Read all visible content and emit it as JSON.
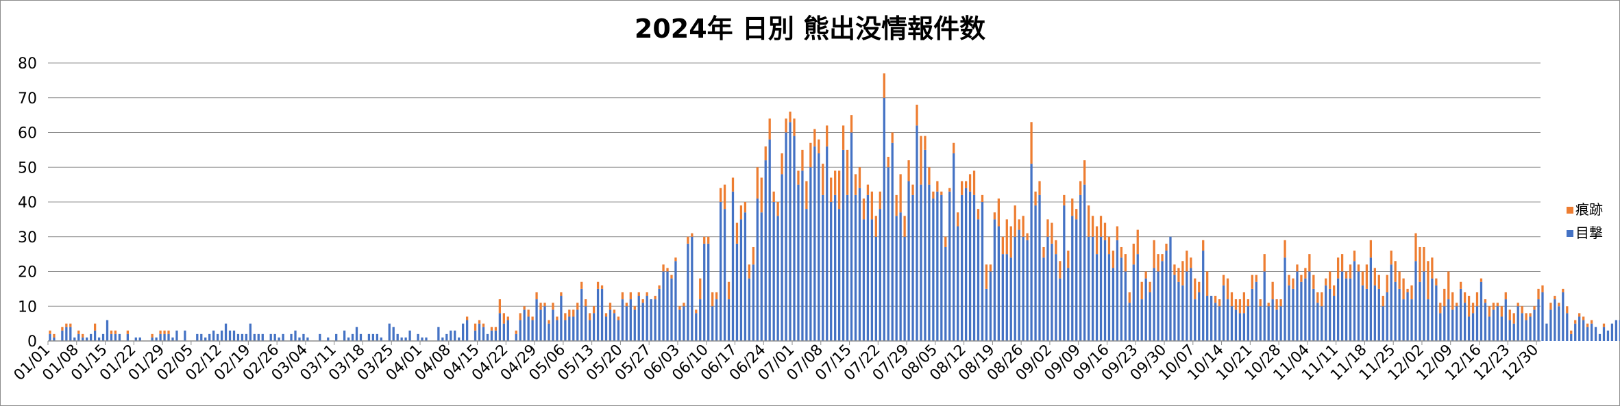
{
  "chart_data": {
    "type": "bar",
    "stacked": true,
    "title": "2024年 日別 熊出没情報件数",
    "xlabel": "",
    "ylabel": "",
    "ylim": [
      0,
      80
    ],
    "yticks": [
      0,
      10,
      20,
      30,
      40,
      50,
      60,
      70,
      80
    ],
    "grid": true,
    "legend_position": "right",
    "date_start": "2024-01-01",
    "date_end": "2024-12-30",
    "x_tick_labels": [
      "01/01",
      "01/08",
      "01/15",
      "01/22",
      "01/29",
      "02/05",
      "02/12",
      "02/19",
      "02/26",
      "03/04",
      "03/11",
      "03/18",
      "03/25",
      "04/01",
      "04/08",
      "04/15",
      "04/22",
      "04/29",
      "05/06",
      "05/13",
      "05/20",
      "05/27",
      "06/03",
      "06/10",
      "06/17",
      "06/24",
      "07/01",
      "07/08",
      "07/15",
      "07/22",
      "07/29",
      "08/05",
      "08/12",
      "08/19",
      "08/26",
      "09/02",
      "09/09",
      "09/16",
      "09/23",
      "09/30",
      "10/07",
      "10/14",
      "10/21",
      "10/28",
      "11/04",
      "11/11",
      "11/18",
      "11/25",
      "12/02",
      "12/09",
      "12/16",
      "12/23",
      "12/30"
    ],
    "series": [
      {
        "name": "目撃",
        "color": "#4472c4",
        "values": [
          2,
          1,
          0,
          3,
          4,
          4,
          1,
          2,
          1,
          1,
          2,
          3,
          1,
          2,
          6,
          2,
          2,
          2,
          0,
          2,
          0,
          1,
          1,
          0,
          0,
          1,
          1,
          2,
          2,
          2,
          1,
          3,
          0,
          3,
          0,
          0,
          2,
          2,
          1,
          2,
          3,
          2,
          3,
          5,
          3,
          3,
          2,
          2,
          2,
          5,
          2,
          2,
          2,
          0,
          2,
          2,
          1,
          2,
          0,
          2,
          3,
          1,
          2,
          1,
          0,
          0,
          2,
          0,
          1,
          0,
          2,
          0,
          3,
          1,
          2,
          4,
          2,
          0,
          2,
          2,
          2,
          1,
          0,
          5,
          4,
          2,
          1,
          1,
          3,
          0,
          2,
          1,
          1,
          0,
          0,
          4,
          1,
          2,
          3,
          3,
          1,
          5,
          6,
          0,
          3,
          5,
          4,
          2,
          3,
          3,
          8,
          5,
          6,
          0,
          2,
          6,
          9,
          7,
          6,
          12,
          9,
          10,
          5,
          9,
          6,
          13,
          6,
          7,
          7,
          9,
          15,
          10,
          6,
          8,
          15,
          15,
          7,
          9,
          8,
          6,
          12,
          10,
          12,
          9,
          13,
          11,
          13,
          12,
          12,
          15,
          20,
          20,
          18,
          23,
          9,
          10,
          28,
          30,
          8,
          12,
          28,
          28,
          10,
          12,
          40,
          38,
          12,
          43,
          28,
          35,
          37,
          18,
          22,
          41,
          37,
          52,
          58,
          40,
          36,
          48,
          60,
          63,
          59,
          45,
          49,
          38,
          50,
          56,
          54,
          42,
          56,
          40,
          42,
          38,
          55,
          42,
          60,
          42,
          44,
          35,
          42,
          35,
          30,
          38,
          70,
          50,
          57,
          36,
          37,
          30,
          46,
          42,
          62,
          45,
          55,
          45,
          41,
          43,
          42,
          27,
          43,
          54,
          33,
          42,
          44,
          43,
          42,
          35,
          40,
          15,
          20,
          35,
          33,
          25,
          25,
          24,
          30,
          32,
          30,
          29,
          51,
          39,
          42,
          24,
          30,
          28,
          25,
          18,
          39,
          21,
          36,
          35,
          42,
          45,
          30,
          30,
          25,
          30,
          29,
          25,
          21,
          29,
          24,
          20,
          11,
          22,
          25,
          12,
          18,
          14,
          21,
          20,
          23,
          26,
          30,
          19,
          17,
          16,
          20,
          21,
          12,
          14,
          26,
          13,
          13,
          11,
          10,
          16,
          12,
          10,
          9,
          8,
          8,
          10,
          15,
          17,
          10,
          20,
          10,
          12,
          9,
          10,
          24,
          16,
          15,
          20,
          17,
          18,
          20,
          15,
          11,
          10,
          16,
          15,
          13,
          18,
          20,
          18,
          18,
          23,
          20,
          16,
          15,
          24,
          16,
          15,
          10,
          14,
          22,
          17,
          15,
          12,
          14,
          12,
          23,
          17,
          20,
          12,
          18,
          16,
          8,
          10,
          12,
          9,
          10,
          15,
          11,
          7,
          8,
          10,
          17,
          11,
          7,
          9,
          10,
          7,
          12,
          6,
          5,
          10,
          8,
          6,
          7,
          9,
          12,
          14,
          5,
          9,
          12,
          10,
          14,
          8,
          2,
          5,
          7,
          6,
          4,
          5,
          4,
          2,
          4,
          3,
          5,
          6,
          6,
          3,
          2,
          2,
          1,
          0,
          3,
          2,
          1,
          1,
          2,
          0,
          0,
          2,
          3,
          1,
          0,
          0,
          0
        ],
        "_bar_height_note": ""
      },
      {
        "name": "痕跡",
        "color": "#ed7d31",
        "values": [
          1,
          1,
          0,
          1,
          1,
          1,
          0,
          1,
          1,
          0,
          0,
          2,
          0,
          0,
          0,
          1,
          1,
          0,
          0,
          1,
          0,
          0,
          0,
          0,
          0,
          1,
          0,
          1,
          1,
          1,
          0,
          0,
          0,
          0,
          0,
          0,
          0,
          0,
          0,
          0,
          0,
          0,
          0,
          0,
          0,
          0,
          0,
          0,
          0,
          0,
          0,
          0,
          0,
          0,
          0,
          0,
          0,
          0,
          0,
          0,
          0,
          0,
          0,
          0,
          0,
          0,
          0,
          0,
          0,
          0,
          0,
          0,
          0,
          0,
          0,
          0,
          0,
          0,
          0,
          0,
          0,
          0,
          0,
          0,
          0,
          0,
          0,
          0,
          0,
          0,
          0,
          0,
          0,
          0,
          0,
          0,
          0,
          0,
          0,
          0,
          0,
          0,
          1,
          0,
          2,
          1,
          1,
          0,
          1,
          1,
          4,
          3,
          1,
          0,
          1,
          2,
          1,
          2,
          1,
          2,
          2,
          1,
          1,
          2,
          1,
          1,
          2,
          2,
          2,
          2,
          2,
          2,
          2,
          2,
          2,
          1,
          1,
          2,
          1,
          1,
          2,
          1,
          2,
          1,
          1,
          1,
          1,
          0,
          1,
          1,
          2,
          1,
          1,
          1,
          1,
          1,
          2,
          1,
          1,
          6,
          2,
          2,
          4,
          2,
          4,
          7,
          5,
          4,
          6,
          4,
          3,
          4,
          5,
          9,
          10,
          4,
          6,
          3,
          4,
          6,
          4,
          3,
          5,
          4,
          6,
          8,
          7,
          5,
          4,
          9,
          6,
          7,
          7,
          11,
          7,
          13,
          5,
          6,
          6,
          6,
          3,
          8,
          6,
          5,
          7,
          3,
          3,
          6,
          11,
          6,
          6,
          3,
          6,
          14,
          4,
          5,
          2,
          3,
          1,
          3,
          1,
          3,
          4,
          4,
          2,
          5,
          7,
          3,
          2,
          7,
          2,
          2,
          8,
          5,
          10,
          9,
          9,
          3,
          6,
          2,
          12,
          4,
          4,
          3,
          5,
          6,
          4,
          5,
          3,
          5,
          5,
          3,
          4,
          7,
          9,
          6,
          8,
          6,
          5,
          5,
          5,
          4,
          3,
          5,
          3,
          6,
          7,
          5,
          2,
          3,
          8,
          5,
          2,
          2,
          0,
          3,
          4,
          7,
          6,
          3,
          6,
          3,
          3,
          7,
          0,
          2,
          2,
          3,
          6,
          4,
          3,
          4,
          6,
          2,
          4,
          2,
          2,
          5,
          1,
          5,
          3,
          2,
          5,
          3,
          3,
          2,
          2,
          3,
          5,
          4,
          3,
          4,
          2,
          5,
          3,
          6,
          5,
          2,
          4,
          3,
          2,
          4,
          7,
          5,
          5,
          4,
          3,
          5,
          4,
          6,
          5,
          6,
          1,
          4,
          8,
          10,
          7,
          11,
          6,
          2,
          3,
          5,
          8,
          5,
          1,
          2,
          3,
          6,
          3,
          4,
          1,
          1,
          3,
          2,
          1,
          3,
          2,
          3,
          3,
          1,
          2,
          2,
          1,
          1,
          3,
          2,
          0,
          2,
          1,
          1,
          1,
          2,
          1,
          1,
          1,
          1,
          1,
          1,
          0,
          0,
          1,
          0,
          0,
          0,
          0,
          0,
          0,
          0,
          0,
          0,
          0,
          0,
          0,
          0,
          0,
          0,
          0,
          0,
          0
        ]
      }
    ]
  }
}
